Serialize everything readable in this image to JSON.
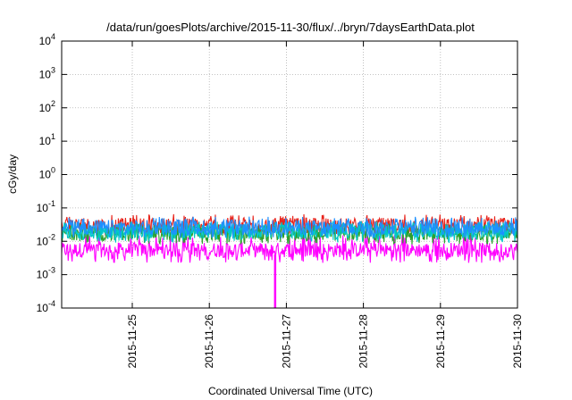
{
  "chart_data": {
    "type": "line",
    "title": "/data/run/goesPlots/archive/2015-11-30/flux/../bryn/7daysEarthData.plot",
    "xlabel": "Coordinated Universal Time (UTC)",
    "ylabel": "cGy/day",
    "yscale": "log",
    "ylim": [
      0.0001,
      10000
    ],
    "xlim": [
      "2015-11-24T02:00",
      "2015-11-30T00:00"
    ],
    "x_ticks": [
      "2015-11-25",
      "2015-11-26",
      "2015-11-27",
      "2015-11-28",
      "2015-11-29",
      "2015-11-30"
    ],
    "y_ticks": [
      {
        "base": "10",
        "exp": "-4",
        "value": 0.0001
      },
      {
        "base": "10",
        "exp": "-3",
        "value": 0.001
      },
      {
        "base": "10",
        "exp": "-2",
        "value": 0.01
      },
      {
        "base": "10",
        "exp": "-1",
        "value": 0.1
      },
      {
        "base": "10",
        "exp": "0",
        "value": 1
      },
      {
        "base": "10",
        "exp": "1",
        "value": 10
      },
      {
        "base": "10",
        "exp": "2",
        "value": 100
      },
      {
        "base": "10",
        "exp": "3",
        "value": 1000
      },
      {
        "base": "10",
        "exp": "4",
        "value": 10000
      }
    ],
    "grid": true,
    "legend": "none",
    "series": [
      {
        "color": "#e8241c",
        "base": 0.03,
        "spike": 0.065,
        "low": 0.016
      },
      {
        "color": "#2ca02c",
        "base": 0.018,
        "spike": 0.035,
        "low": 0.009
      },
      {
        "color": "#00c8c8",
        "base": 0.02,
        "spike": 0.04,
        "low": 0.01
      },
      {
        "color": "#1e90ff",
        "base": 0.026,
        "spike": 0.055,
        "low": 0.014
      },
      {
        "color": "#ff00ff",
        "base": 0.0055,
        "spike": 0.016,
        "low": 0.0025
      }
    ],
    "annotations": [
      {
        "series_color": "#ff00ff",
        "x": "2015-11-26T20:30",
        "y": 0.0001,
        "note_type": "dropout"
      }
    ]
  }
}
